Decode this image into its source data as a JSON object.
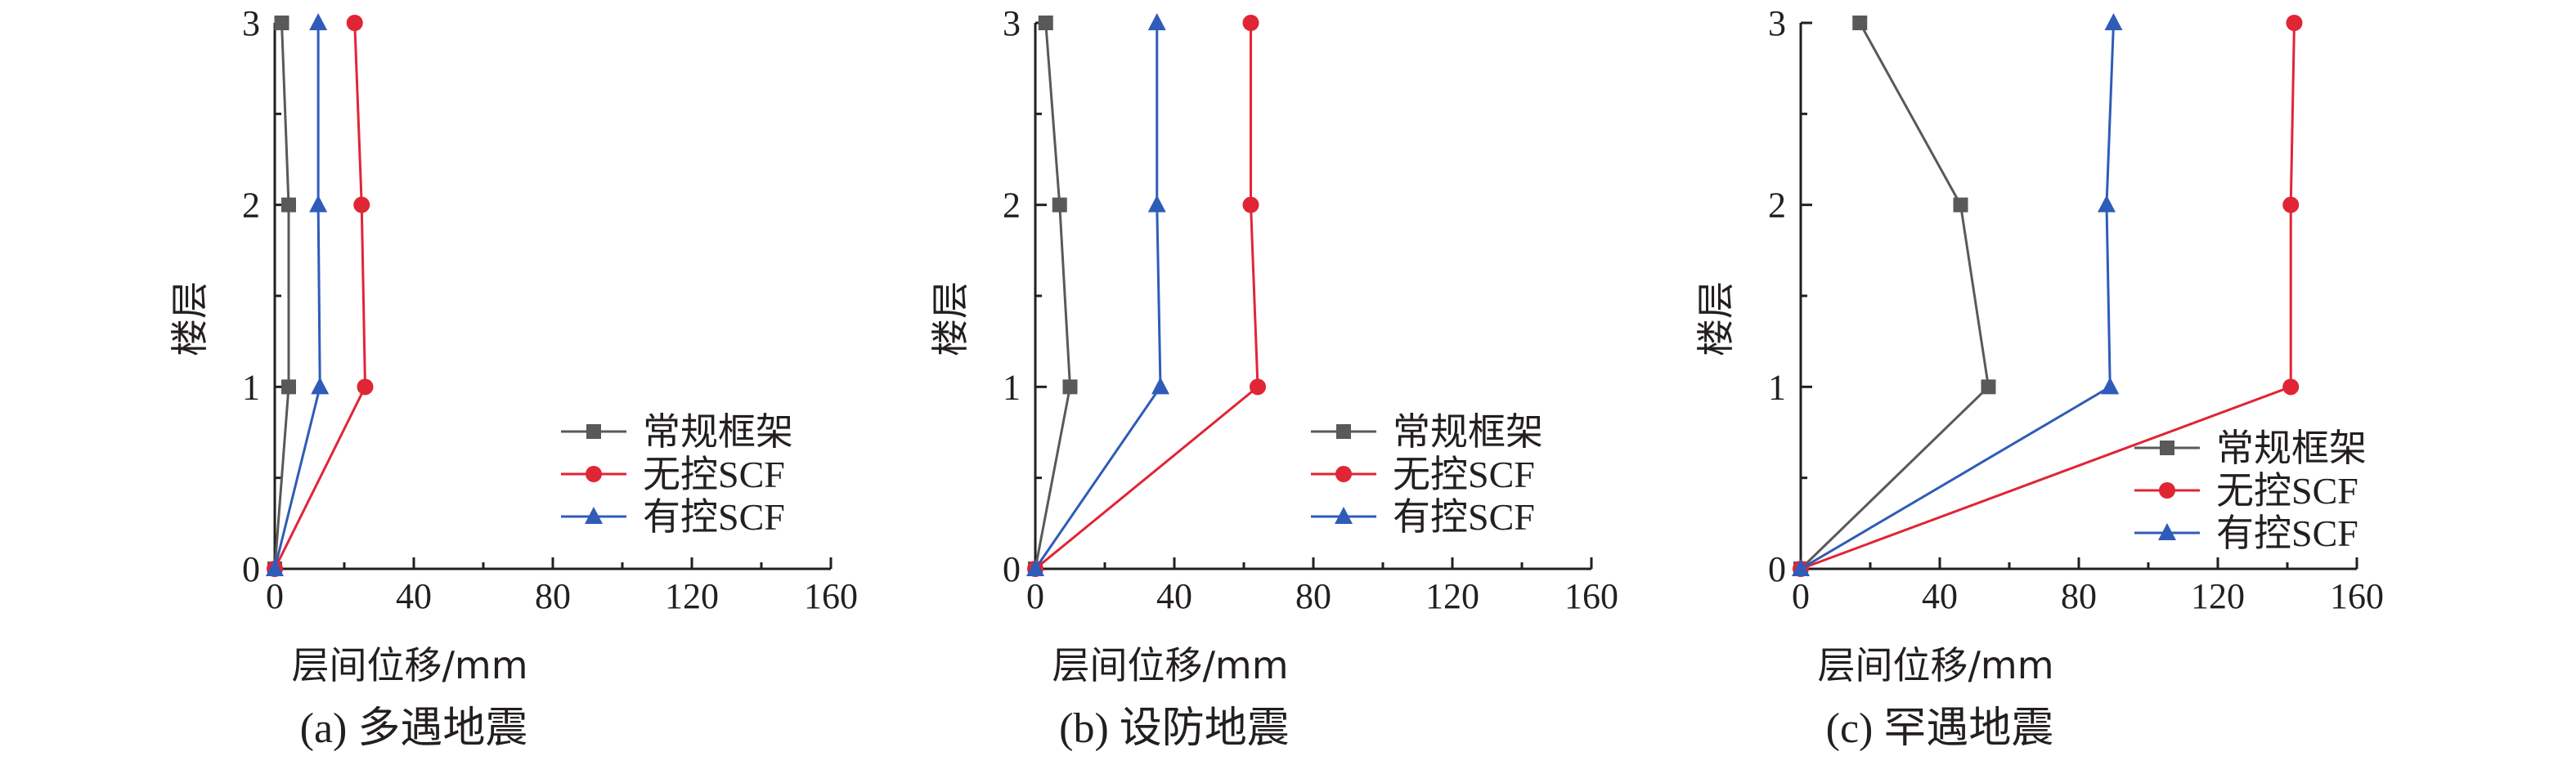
{
  "chart_data": [
    {
      "type": "line",
      "caption": "(a) 多遇地震",
      "xlabel": "层间位移/mm",
      "ylabel": "楼层",
      "xlim": [
        0,
        160
      ],
      "ylim": [
        0,
        3
      ],
      "xticks": [
        "0",
        "40",
        "80",
        "120",
        "160"
      ],
      "yticks": [
        "0",
        "1",
        "2",
        "3"
      ],
      "legend": "lower-right",
      "series": [
        {
          "name": "常规框架",
          "color": "#595959",
          "marker": "square",
          "x": [
            0,
            4,
            4,
            2
          ],
          "y": [
            0,
            1,
            2,
            3
          ]
        },
        {
          "name": "无控SCF",
          "color": "#e02535",
          "marker": "circle",
          "x": [
            0,
            26,
            25,
            23
          ],
          "y": [
            0,
            1,
            2,
            3
          ]
        },
        {
          "name": "有控SCF",
          "color": "#2e5cb8",
          "marker": "triangle",
          "x": [
            0,
            13,
            12.5,
            12.5
          ],
          "y": [
            0,
            1,
            2,
            3
          ]
        }
      ]
    },
    {
      "type": "line",
      "caption": "(b) 设防地震",
      "xlabel": "层间位移/mm",
      "ylabel": "楼层",
      "xlim": [
        0,
        160
      ],
      "ylim": [
        0,
        3
      ],
      "xticks": [
        "0",
        "40",
        "80",
        "120",
        "160"
      ],
      "yticks": [
        "0",
        "1",
        "2",
        "3"
      ],
      "legend": "lower-right",
      "series": [
        {
          "name": "常规框架",
          "color": "#595959",
          "marker": "square",
          "x": [
            0,
            10,
            7,
            3
          ],
          "y": [
            0,
            1,
            2,
            3
          ]
        },
        {
          "name": "无控SCF",
          "color": "#e02535",
          "marker": "circle",
          "x": [
            0,
            64,
            62,
            62
          ],
          "y": [
            0,
            1,
            2,
            3
          ]
        },
        {
          "name": "有控SCF",
          "color": "#2e5cb8",
          "marker": "triangle",
          "x": [
            0,
            36,
            35,
            35
          ],
          "y": [
            0,
            1,
            2,
            3
          ]
        }
      ]
    },
    {
      "type": "line",
      "caption": "(c) 罕遇地震",
      "xlabel": "层间位移/mm",
      "ylabel": "楼层",
      "xlim": [
        0,
        160
      ],
      "ylim": [
        0,
        3
      ],
      "xticks": [
        "0",
        "40",
        "80",
        "120",
        "160"
      ],
      "yticks": [
        "0",
        "1",
        "2",
        "3"
      ],
      "legend": "lower-right",
      "series": [
        {
          "name": "常规框架",
          "color": "#595959",
          "marker": "square",
          "x": [
            0,
            54,
            46,
            17
          ],
          "y": [
            0,
            1,
            2,
            3
          ]
        },
        {
          "name": "无控SCF",
          "color": "#e02535",
          "marker": "circle",
          "x": [
            0,
            141,
            141,
            142
          ],
          "y": [
            0,
            1,
            2,
            3
          ]
        },
        {
          "name": "有控SCF",
          "color": "#2e5cb8",
          "marker": "triangle",
          "x": [
            0,
            89,
            88,
            90
          ],
          "y": [
            0,
            1,
            2,
            3
          ]
        }
      ]
    }
  ]
}
